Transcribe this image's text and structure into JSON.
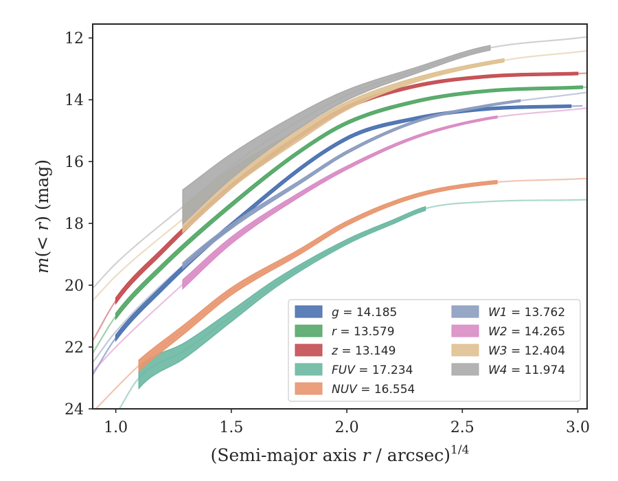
{
  "chart_data": {
    "type": "line",
    "xlabel": "(Semi-major axis r / arcsec)^1/4",
    "ylabel": "m(< r) (mag)",
    "xlim": [
      0.9,
      3.04
    ],
    "ylim": [
      24,
      11.55
    ],
    "y_inverted": true,
    "xticks": [
      1.0,
      1.5,
      2.0,
      2.5,
      3.0
    ],
    "xtick_labels": [
      "1.0",
      "1.5",
      "2.0",
      "2.5",
      "3.0"
    ],
    "yticks": [
      12,
      14,
      16,
      18,
      20,
      22,
      24
    ],
    "ytick_labels": [
      "12",
      "14",
      "16",
      "18",
      "20",
      "22",
      "24"
    ],
    "grid": false,
    "legend_position": "lower-right",
    "series": [
      {
        "key": "g",
        "label": "g = 14.185",
        "color": "#4c72b0",
        "x0": 1.0,
        "x1": 2.97,
        "mtot": 14.185,
        "x_ext0": 0.88,
        "x_ext1": 3.02,
        "band_at_start": 0.1,
        "band_width": 0.08
      },
      {
        "key": "r",
        "label": "r = 13.579",
        "color": "#55a868",
        "x0": 1.0,
        "x1": 3.02,
        "mtot": 13.579,
        "x_ext0": 0.88,
        "x_ext1": 3.04,
        "band_at_start": 0.1,
        "band_width": 0.08
      },
      {
        "key": "z",
        "label": "z = 13.149",
        "color": "#c44e52",
        "x0": 1.0,
        "x1": 3.0,
        "mtot": 13.149,
        "x_ext0": 0.88,
        "x_ext1": 3.04,
        "band_at_start": 0.1,
        "band_width": 0.08
      },
      {
        "key": "FUV",
        "label": "FUV = 17.234",
        "color": "#6cb8a2",
        "x0": 1.1,
        "x1": 2.34,
        "mtot": 17.234,
        "x_ext0": 1.0,
        "x_ext1": 3.04,
        "band_at_start": 0.55,
        "band_width": 0.12
      },
      {
        "key": "NUV",
        "label": "NUV = 16.554",
        "color": "#e8966f",
        "x0": 1.1,
        "x1": 2.65,
        "mtot": 16.554,
        "x_ext0": 0.9,
        "x_ext1": 3.04,
        "band_at_start": 0.25,
        "band_width": 0.1
      },
      {
        "key": "W1",
        "label": "W1 = 13.762",
        "color": "#8c9dc0",
        "x0": 1.29,
        "x1": 2.75,
        "mtot": 13.762,
        "x_ext0": 0.9,
        "x_ext1": 3.04,
        "band_at_start": 0.12,
        "band_width": 0.06
      },
      {
        "key": "W2",
        "label": "W2 = 14.265",
        "color": "#d98cc4",
        "x0": 1.29,
        "x1": 2.65,
        "mtot": 14.265,
        "x_ext0": 0.9,
        "x_ext1": 3.04,
        "band_at_start": 0.22,
        "band_width": 0.06
      },
      {
        "key": "W3",
        "label": "W3 = 12.404",
        "color": "#dfc192",
        "x0": 1.29,
        "x1": 2.68,
        "mtot": 12.404,
        "x_ext0": 0.9,
        "x_ext1": 3.04,
        "band_at_start": 0.75,
        "band_width": 0.1
      },
      {
        "key": "W4",
        "label": "W4 = 11.974",
        "color": "#ababab",
        "x0": 1.29,
        "x1": 2.62,
        "mtot": 11.974,
        "x_ext0": 0.9,
        "x_ext1": 3.04,
        "band_at_start": 0.95,
        "band_width": 0.15
      }
    ],
    "curve_points": {
      "g": [
        [
          0.9,
          22.9
        ],
        [
          1.0,
          21.7
        ],
        [
          1.2,
          20.1
        ],
        [
          1.5,
          18.05
        ],
        [
          2.0,
          15.25
        ],
        [
          2.3,
          14.6
        ],
        [
          2.6,
          14.3
        ],
        [
          3.0,
          14.2
        ]
      ],
      "r": [
        [
          0.9,
          22.2
        ],
        [
          1.0,
          21.0
        ],
        [
          1.2,
          19.4
        ],
        [
          1.5,
          17.4
        ],
        [
          1.8,
          15.65
        ],
        [
          2.0,
          14.75
        ],
        [
          2.3,
          14.05
        ],
        [
          2.6,
          13.72
        ],
        [
          3.0,
          13.6
        ]
      ],
      "z": [
        [
          0.9,
          21.8
        ],
        [
          1.0,
          20.5
        ],
        [
          1.2,
          18.9
        ],
        [
          1.5,
          16.8
        ],
        [
          1.8,
          15.15
        ],
        [
          2.0,
          14.25
        ],
        [
          2.3,
          13.55
        ],
        [
          2.6,
          13.25
        ],
        [
          3.0,
          13.15
        ]
      ],
      "FUV": [
        [
          1.0,
          24.2
        ],
        [
          1.1,
          23.0
        ],
        [
          1.3,
          22.1
        ],
        [
          1.5,
          21.0
        ],
        [
          1.7,
          19.9
        ],
        [
          2.0,
          18.6
        ],
        [
          2.2,
          17.95
        ],
        [
          2.35,
          17.5
        ],
        [
          2.6,
          17.3
        ],
        [
          3.0,
          17.24
        ]
      ],
      "NUV": [
        [
          0.9,
          24.1
        ],
        [
          1.1,
          22.6
        ],
        [
          1.3,
          21.4
        ],
        [
          1.5,
          20.2
        ],
        [
          1.8,
          18.9
        ],
        [
          2.0,
          18.0
        ],
        [
          2.3,
          17.1
        ],
        [
          2.6,
          16.7
        ],
        [
          3.0,
          16.56
        ]
      ],
      "W1": [
        [
          0.9,
          22.5
        ],
        [
          1.0,
          21.5
        ],
        [
          1.3,
          19.3
        ],
        [
          1.5,
          18.1
        ],
        [
          1.8,
          16.65
        ],
        [
          2.0,
          15.7
        ],
        [
          2.3,
          14.7
        ],
        [
          2.6,
          14.2
        ],
        [
          3.0,
          13.8
        ]
      ],
      "W2": [
        [
          0.9,
          22.8
        ],
        [
          1.0,
          22.0
        ],
        [
          1.3,
          19.9
        ],
        [
          1.5,
          18.55
        ],
        [
          1.8,
          17.05
        ],
        [
          2.0,
          16.2
        ],
        [
          2.3,
          15.2
        ],
        [
          2.6,
          14.62
        ],
        [
          3.0,
          14.3
        ]
      ],
      "W3": [
        [
          0.9,
          20.5
        ],
        [
          1.0,
          19.7
        ],
        [
          1.3,
          17.8
        ],
        [
          1.5,
          16.55
        ],
        [
          1.8,
          15.1
        ],
        [
          2.0,
          14.2
        ],
        [
          2.3,
          13.35
        ],
        [
          2.7,
          12.7
        ],
        [
          3.0,
          12.45
        ]
      ],
      "W4": [
        [
          0.9,
          20.1
        ],
        [
          1.0,
          19.3
        ],
        [
          1.3,
          17.4
        ],
        [
          1.5,
          16.15
        ],
        [
          1.8,
          14.65
        ],
        [
          2.0,
          13.85
        ],
        [
          2.3,
          13.05
        ],
        [
          2.6,
          12.35
        ],
        [
          3.0,
          12.0
        ]
      ]
    }
  }
}
